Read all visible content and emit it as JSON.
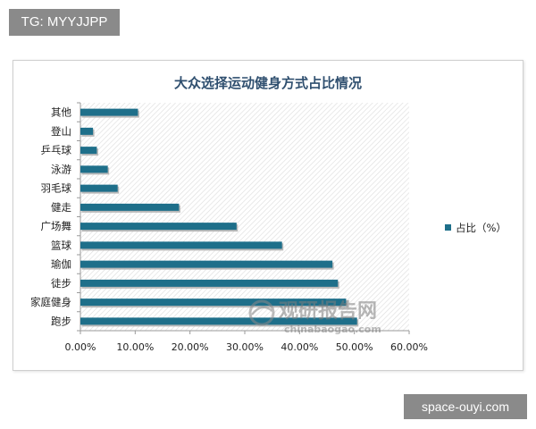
{
  "watermark_top": "TG: MYYJJPP",
  "watermark_bottom": "space-ouyi.com",
  "watermark_logo": {
    "cn": "观研报告网",
    "en": "chinabaogao.com"
  },
  "colors": {
    "bar": "#1e6f8a",
    "bar_shadow": "#b9b9b9",
    "title": "#2f4f6f",
    "grid_line": "#b0b0b0"
  },
  "chart_data": {
    "type": "bar",
    "orientation": "horizontal",
    "title": "大众选择运动健身方式占比情况",
    "categories": [
      "其他",
      "登山",
      "乒乓球",
      "泳游",
      "羽毛球",
      "健走",
      "广场舞",
      "篮球",
      "瑜伽",
      "徒步",
      "家庭健身",
      "跑步"
    ],
    "series": [
      {
        "name": "占比（%）",
        "values": [
          10.5,
          2.3,
          3.0,
          5.0,
          6.8,
          18.0,
          28.5,
          36.8,
          46.0,
          47.0,
          48.5,
          50.5
        ]
      }
    ],
    "xlim": [
      0,
      60
    ],
    "xticks": [
      "0.00%",
      "10.00%",
      "20.00%",
      "30.00%",
      "40.00%",
      "50.00%",
      "60.00%"
    ],
    "legend_position": "right"
  }
}
